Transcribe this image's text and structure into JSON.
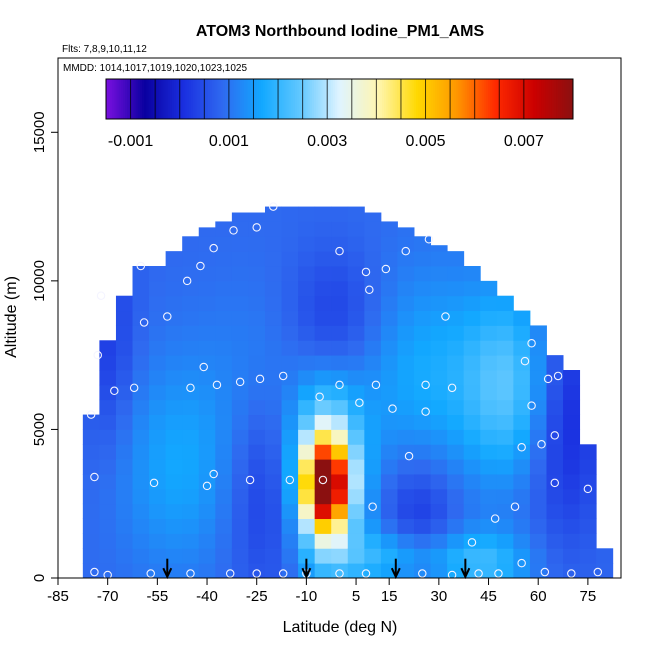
{
  "chart_data": {
    "type": "heatmap",
    "title": "ATOM3 Northbound Iodine_PM1_AMS",
    "flights_label": "Flts: 7,8,9,10,11,12",
    "dates_label": "MMDD: 1014,1017,1019,1020,1023,1025",
    "xlabel": "Latitude (deg N)",
    "ylabel": "Altitude (m)",
    "xlim": [
      -85,
      85
    ],
    "ylim": [
      0,
      17500
    ],
    "x_ticks": [
      "-85",
      "-70",
      "-55",
      "-40",
      "-25",
      "-10",
      "5",
      "15",
      "30",
      "45",
      "60",
      "75"
    ],
    "x_tick_values": [
      -85,
      -70,
      -55,
      -40,
      -25,
      -10,
      5,
      15,
      30,
      45,
      60,
      75
    ],
    "y_ticks": [
      "0",
      "5000",
      "10000",
      "15000"
    ],
    "y_tick_values": [
      0,
      5000,
      10000,
      15000
    ],
    "colorbar": {
      "min": -0.0015,
      "max": 0.008,
      "tick_labels": [
        "-0.001",
        "0.001",
        "0.003",
        "0.005",
        "0.007"
      ],
      "tick_values": [
        -0.001,
        0.001,
        0.003,
        0.005,
        0.007
      ],
      "colors": [
        "#7a10e0",
        "#0a00a0",
        "#1a2fe0",
        "#2f6af0",
        "#12a8ff",
        "#62c8ff",
        "#dff4ff",
        "#fff6b0",
        "#ffd800",
        "#ff9800",
        "#ff2a00",
        "#cc0000",
        "#8b1010"
      ]
    },
    "latitude_bins": [
      -75,
      -70,
      -65,
      -60,
      -55,
      -50,
      -45,
      -40,
      -35,
      -30,
      -25,
      -20,
      -15,
      -10,
      -5,
      0,
      5,
      10,
      15,
      20,
      25,
      30,
      35,
      40,
      45,
      50,
      55,
      60,
      65,
      70,
      75,
      80
    ],
    "altitude_bins": [
      0,
      500,
      1000,
      1500,
      2000,
      2500,
      3000,
      3500,
      4000,
      4500,
      5000,
      5500,
      6000,
      6500,
      7000,
      7500,
      8000,
      8500,
      9000,
      9500,
      10000,
      10500,
      11000,
      11500,
      12000,
      12500
    ],
    "coverage_top_altitude": [
      5500,
      8000,
      9500,
      10500,
      10500,
      11000,
      11500,
      11800,
      12000,
      12300,
      12300,
      12500,
      12500,
      12500,
      12500,
      12500,
      12500,
      12300,
      12000,
      11800,
      11500,
      11200,
      11000,
      10500,
      10000,
      9500,
      9000,
      8500,
      7500,
      7000,
      4500,
      1000
    ],
    "sample_points": [
      {
        "lat": -75,
        "alt": 5500
      },
      {
        "lat": -73,
        "alt": 7500
      },
      {
        "lat": -72,
        "alt": 9500
      },
      {
        "lat": -68,
        "alt": 6300
      },
      {
        "lat": -62,
        "alt": 6400
      },
      {
        "lat": -60,
        "alt": 10500
      },
      {
        "lat": -59,
        "alt": 8600
      },
      {
        "lat": -52,
        "alt": 8800
      },
      {
        "lat": -46,
        "alt": 10000
      },
      {
        "lat": -45,
        "alt": 6400
      },
      {
        "lat": -42,
        "alt": 10500
      },
      {
        "lat": -38,
        "alt": 11100
      },
      {
        "lat": -32,
        "alt": 11700
      },
      {
        "lat": -25,
        "alt": 11800
      },
      {
        "lat": -20,
        "alt": 12500
      },
      {
        "lat": -24,
        "alt": 6700
      },
      {
        "lat": -17,
        "alt": 6800
      },
      {
        "lat": -41,
        "alt": 7100
      },
      {
        "lat": -37,
        "alt": 6500
      },
      {
        "lat": -30,
        "alt": 6600
      },
      {
        "lat": -6,
        "alt": 6100
      },
      {
        "lat": 0,
        "alt": 11000
      },
      {
        "lat": 8,
        "alt": 10300
      },
      {
        "lat": 9,
        "alt": 9700
      },
      {
        "lat": 14,
        "alt": 10400
      },
      {
        "lat": 20,
        "alt": 11000
      },
      {
        "lat": 27,
        "alt": 11400
      },
      {
        "lat": 32,
        "alt": 8800
      },
      {
        "lat": 0,
        "alt": 6500
      },
      {
        "lat": 6,
        "alt": 5900
      },
      {
        "lat": 11,
        "alt": 6500
      },
      {
        "lat": 16,
        "alt": 5700
      },
      {
        "lat": 26,
        "alt": 6500
      },
      {
        "lat": 34,
        "alt": 6400
      },
      {
        "lat": 26,
        "alt": 5600
      },
      {
        "lat": 56,
        "alt": 7300
      },
      {
        "lat": 58,
        "alt": 7900
      },
      {
        "lat": 63,
        "alt": 6700
      },
      {
        "lat": 66,
        "alt": 6800
      },
      {
        "lat": 58,
        "alt": 5800
      },
      {
        "lat": 65,
        "alt": 4800
      },
      {
        "lat": 61,
        "alt": 4500
      },
      {
        "lat": 55,
        "alt": 4400
      },
      {
        "lat": 65,
        "alt": 3200
      },
      {
        "lat": 75,
        "alt": 3000
      },
      {
        "lat": -74,
        "alt": 3400
      },
      {
        "lat": -56,
        "alt": 3200
      },
      {
        "lat": -40,
        "alt": 3100
      },
      {
        "lat": -38,
        "alt": 3500
      },
      {
        "lat": -27,
        "alt": 3300
      },
      {
        "lat": -15,
        "alt": 3300
      },
      {
        "lat": -5,
        "alt": 3300
      },
      {
        "lat": 10,
        "alt": 2400
      },
      {
        "lat": 21,
        "alt": 4100
      },
      {
        "lat": 40,
        "alt": 1200
      },
      {
        "lat": 47,
        "alt": 2000
      },
      {
        "lat": 53,
        "alt": 2400
      },
      {
        "lat": -74,
        "alt": 200
      },
      {
        "lat": -70,
        "alt": 100
      },
      {
        "lat": -57,
        "alt": 150
      },
      {
        "lat": -45,
        "alt": 150
      },
      {
        "lat": -33,
        "alt": 150
      },
      {
        "lat": -25,
        "alt": 150
      },
      {
        "lat": -17,
        "alt": 150
      },
      {
        "lat": -10,
        "alt": 150
      },
      {
        "lat": 0,
        "alt": 150
      },
      {
        "lat": 8,
        "alt": 150
      },
      {
        "lat": 25,
        "alt": 150
      },
      {
        "lat": 34,
        "alt": 100
      },
      {
        "lat": 42,
        "alt": 150
      },
      {
        "lat": 48,
        "alt": 150
      },
      {
        "lat": 55,
        "alt": 500
      },
      {
        "lat": 62,
        "alt": 200
      },
      {
        "lat": 70,
        "alt": 150
      },
      {
        "lat": 78,
        "alt": 200
      }
    ],
    "arrow_latitudes": [
      -52,
      -10,
      17,
      38
    ],
    "grid": false,
    "colorbar_position": "top inset"
  }
}
